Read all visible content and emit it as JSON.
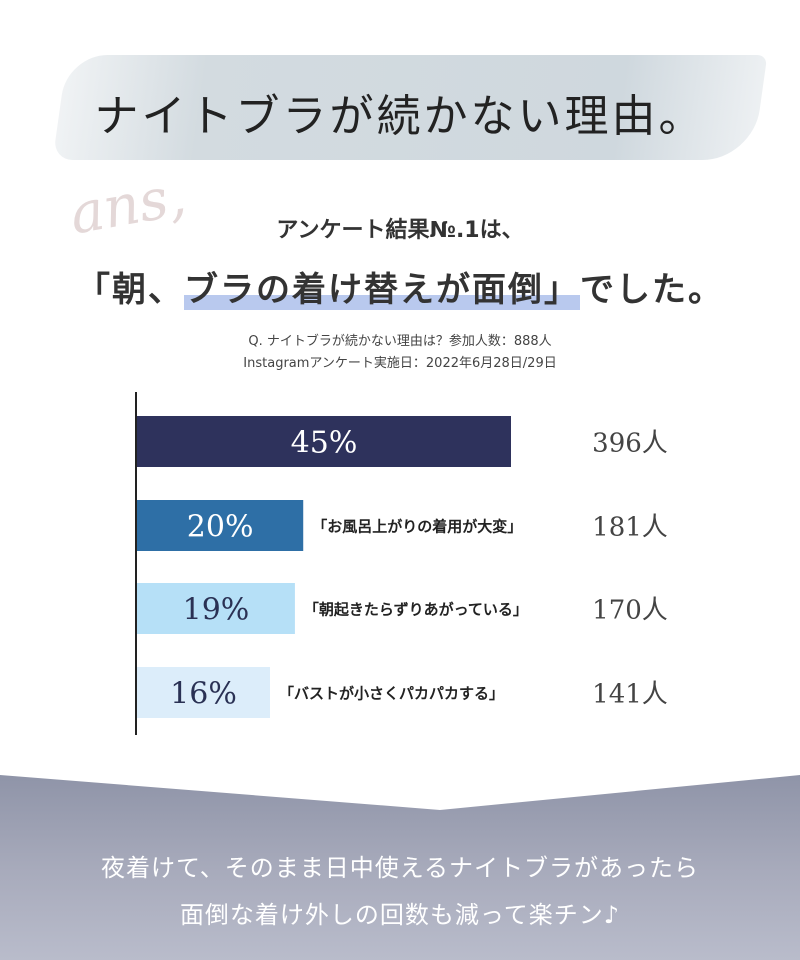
{
  "title": "ナイトブラが続かない理由。",
  "ans_script": "ans,",
  "headline": {
    "line1": "アンケート結果№.1は、",
    "line2_pre": "「朝、",
    "line2_hl": "ブラの着け替えが面倒」",
    "line2_post": "でした。"
  },
  "notes": [
    "Q. ナイトブラが続かない理由は？参加人数：888人",
    "Instagramアンケート実施日：2022年6月28日/29日"
  ],
  "chart_data": {
    "type": "bar",
    "orientation": "horizontal",
    "xlim": [
      0,
      45
    ],
    "categories": [
      "",
      "「お風呂上がりの着用が大変」",
      "「朝起きたらずりあがっている」",
      "「バストが小さくパカパカする」"
    ],
    "values": [
      45,
      20,
      19,
      16
    ],
    "value_labels": [
      "45%",
      "20%",
      "19%",
      "16%"
    ],
    "counts": [
      "396人",
      "181人",
      "170人",
      "141人"
    ],
    "colors": [
      "#2e325c",
      "#2e6fa6",
      "#b6e0f7",
      "#dcedfa"
    ],
    "label_colors": [
      "#ffffff",
      "#ffffff",
      "#2a3154",
      "#2a3154"
    ]
  },
  "footer": [
    "夜着けて、そのまま日中使えるナイトブラがあったら",
    "面倒な着け外しの回数も減って楽チン♪"
  ]
}
